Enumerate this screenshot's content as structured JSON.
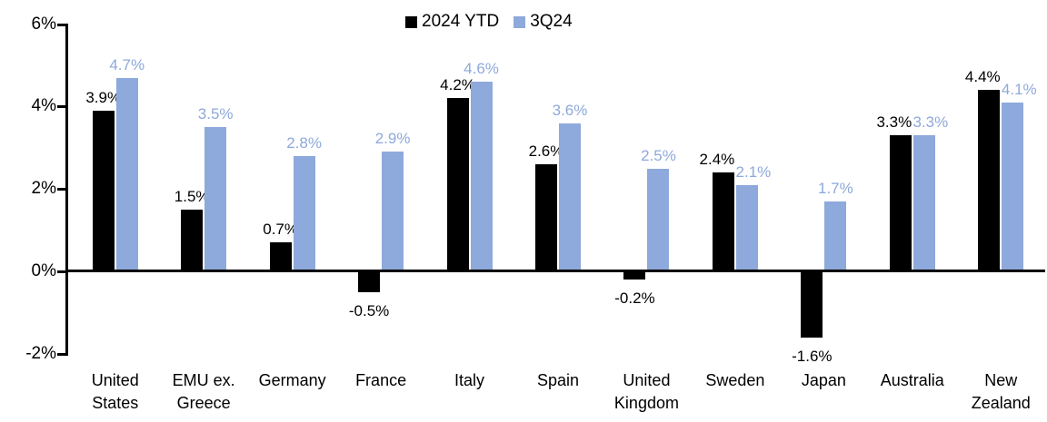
{
  "chart_data": {
    "type": "bar",
    "title": "",
    "legend_position": "top-center",
    "grid": false,
    "ylim": [
      -2,
      6
    ],
    "yaxis_ticks": [
      {
        "label": "6%",
        "value": 6
      },
      {
        "label": "4%",
        "value": 4
      },
      {
        "label": "2%",
        "value": 2
      },
      {
        "label": "0%",
        "value": 0
      },
      {
        "label": "-2%",
        "value": -2
      }
    ],
    "categories": [
      {
        "label": "United States",
        "lines": [
          "United",
          "States"
        ]
      },
      {
        "label": "EMU ex. Greece",
        "lines": [
          "EMU ex.",
          "Greece"
        ]
      },
      {
        "label": "Germany",
        "lines": [
          "Germany"
        ]
      },
      {
        "label": "France",
        "lines": [
          "France"
        ]
      },
      {
        "label": "Italy",
        "lines": [
          "Italy"
        ]
      },
      {
        "label": "Spain",
        "lines": [
          "Spain"
        ]
      },
      {
        "label": "United Kingdom",
        "lines": [
          "United",
          "Kingdom"
        ]
      },
      {
        "label": "Sweden",
        "lines": [
          "Sweden"
        ]
      },
      {
        "label": "Japan",
        "lines": [
          "Japan"
        ]
      },
      {
        "label": "Australia",
        "lines": [
          "Australia"
        ]
      },
      {
        "label": "New Zealand",
        "lines": [
          "New",
          "Zealand"
        ]
      }
    ],
    "series": [
      {
        "name": "2024 YTD",
        "color": "#000000",
        "label_color": "#000000",
        "values": [
          3.9,
          1.5,
          0.7,
          -0.5,
          4.2,
          2.6,
          -0.2,
          2.4,
          -1.6,
          3.3,
          4.4
        ],
        "labels": [
          "3.9%",
          "1.5%",
          "0.7%",
          "-0.5%",
          "4.2%",
          "2.6%",
          "-0.2%",
          "2.4%",
          "-1.6%",
          "3.3%",
          "4.4%"
        ]
      },
      {
        "name": "3Q24",
        "color": "#8EA9DB",
        "label_color": "#8EA9DB",
        "values": [
          4.7,
          3.5,
          2.8,
          2.9,
          4.6,
          3.6,
          2.5,
          2.1,
          1.7,
          3.3,
          4.1
        ],
        "labels": [
          "4.7%",
          "3.5%",
          "2.8%",
          "2.9%",
          "4.6%",
          "3.6%",
          "2.5%",
          "2.1%",
          "1.7%",
          "3.3%",
          "4.1%"
        ]
      }
    ]
  }
}
